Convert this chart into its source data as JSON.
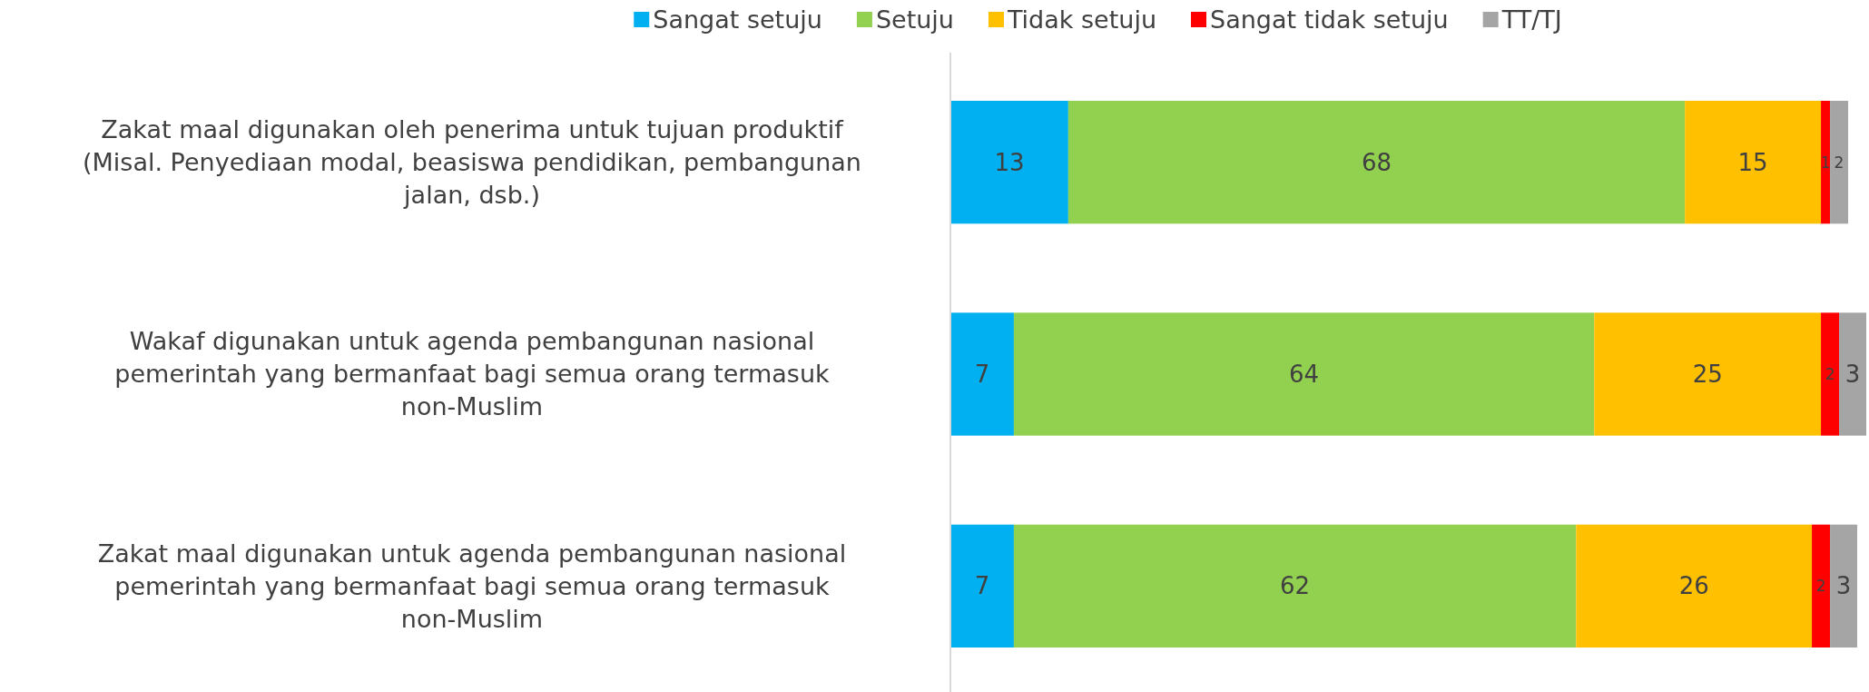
{
  "chart_data": {
    "type": "bar",
    "orientation": "horizontal",
    "stacked": true,
    "data_labels": true,
    "legend": "top",
    "tick_labels": "y",
    "xlim": [
      0,
      101
    ],
    "categories": [
      "Zakat maal digunakan oleh penerima untuk tujuan produktif (Misal. Penyediaan modal, beasiswa pendidikan, pembangunan jalan, dsb.)",
      "Wakaf digunakan untuk agenda pembangunan nasional pemerintah yang bermanfaat bagi semua orang termasuk non-Muslim",
      "Zakat maal digunakan untuk agenda pembangunan nasional pemerintah yang bermanfaat bagi semua orang termasuk non-Muslim"
    ],
    "series": [
      {
        "name": "Sangat setuju",
        "color": "#00b0f0",
        "values": [
          13,
          7,
          7
        ]
      },
      {
        "name": "Setuju",
        "color": "#92d050",
        "values": [
          68,
          64,
          62
        ]
      },
      {
        "name": "Tidak setuju",
        "color": "#ffc000",
        "values": [
          15,
          25,
          26
        ]
      },
      {
        "name": "Sangat tidak setuju",
        "color": "#ff0000",
        "values": [
          1,
          2,
          2
        ]
      },
      {
        "name": "TT/TJ",
        "color": "#a5a5a5",
        "values": [
          2,
          3,
          3
        ]
      }
    ]
  }
}
